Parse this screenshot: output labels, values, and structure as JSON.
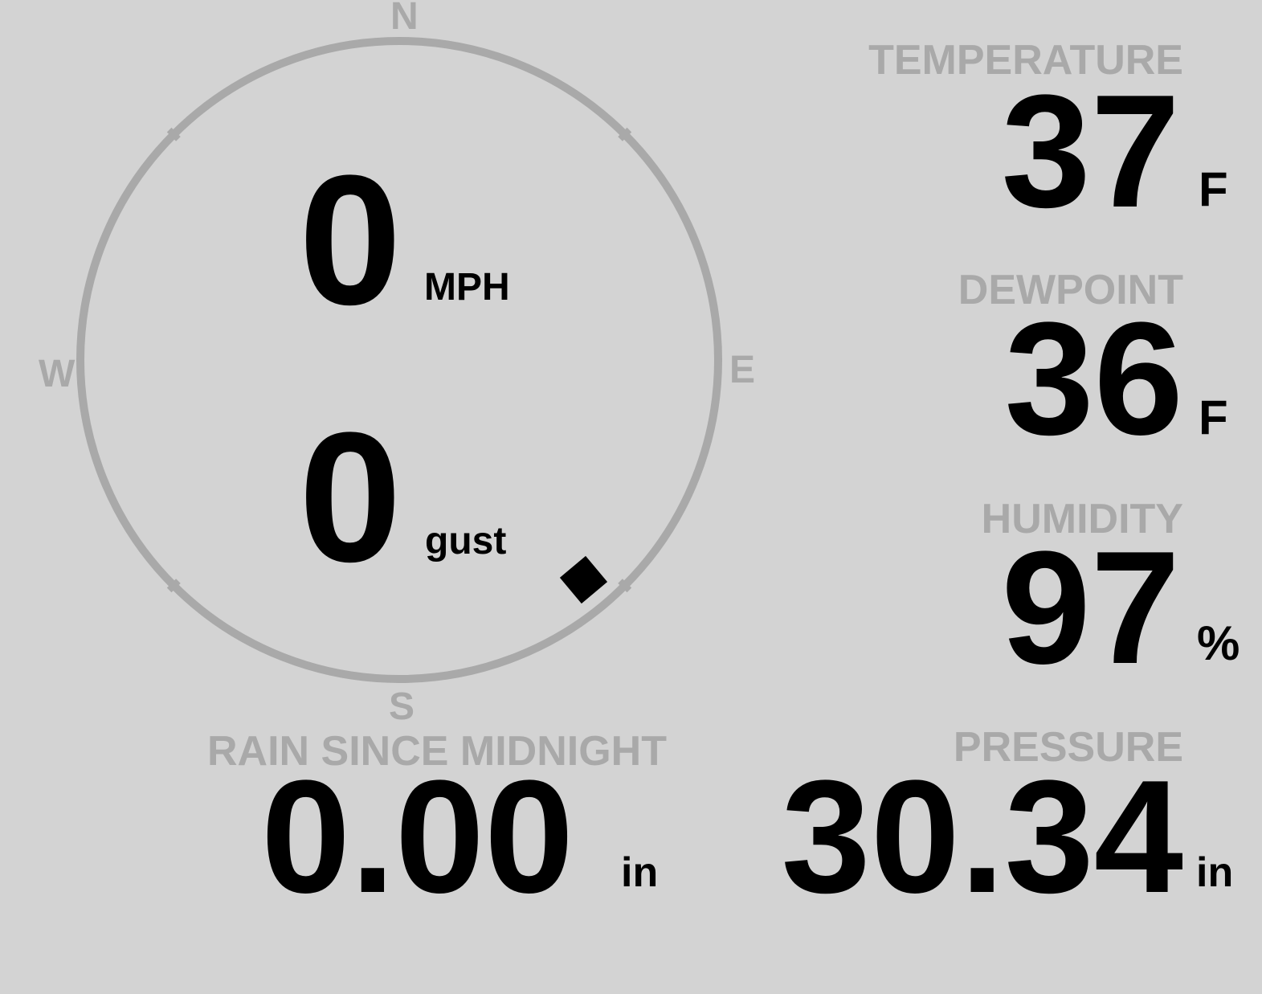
{
  "colors": {
    "background": "#d3d3d3",
    "label": "#a9a9a9",
    "value": "#000000",
    "ring": "#a9a9a9"
  },
  "wind": {
    "speed": "0",
    "speed_unit": "MPH",
    "gust": "0",
    "gust_unit": "gust",
    "direction_deg": 140,
    "compass": {
      "n": "N",
      "e": "E",
      "s": "S",
      "w": "W"
    }
  },
  "temperature": {
    "label": "TEMPERATURE",
    "value": "37",
    "unit": "F"
  },
  "dewpoint": {
    "label": "DEWPOINT",
    "value": "36",
    "unit": "F"
  },
  "humidity": {
    "label": "HUMIDITY",
    "value": "97",
    "unit": "%"
  },
  "rain": {
    "label": "RAIN SINCE MIDNIGHT",
    "value": "0.00",
    "unit": "in"
  },
  "pressure": {
    "label": "PRESSURE",
    "value": "30.34",
    "unit": "in"
  }
}
